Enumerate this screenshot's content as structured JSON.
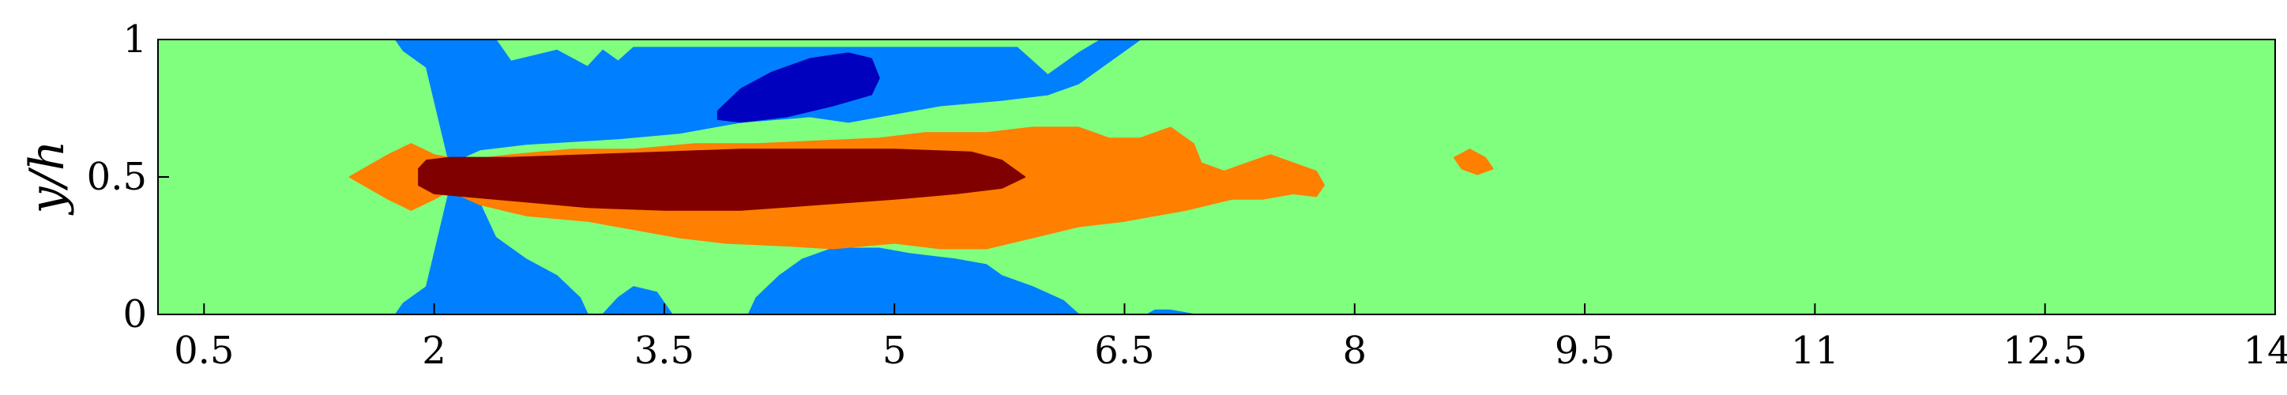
{
  "chart_data": {
    "type": "heatmap",
    "title": "",
    "xlabel": "",
    "ylabel": "y/h",
    "xlim": [
      0.2,
      14
    ],
    "ylim": [
      0,
      1
    ],
    "x_ticks": [
      0.5,
      2,
      3.5,
      5,
      6.5,
      8,
      9.5,
      11,
      12.5,
      14
    ],
    "x_tick_labels": [
      "0.5",
      "2",
      "3.5",
      "5",
      "6.5",
      "8",
      "9.5",
      "11",
      "12.5",
      "14"
    ],
    "y_ticks": [
      0,
      0.5,
      1
    ],
    "y_tick_labels": [
      "0",
      "0.5",
      "1"
    ],
    "grid": false,
    "colors": {
      "background": "#80ff7f",
      "level_low": "#0080ff",
      "level_lowest": "#0000bf",
      "level_high": "#ff7f00",
      "level_highest": "#800000"
    },
    "regions": [
      {
        "level": "low",
        "points": [
          [
            1.75,
            1
          ],
          [
            2.1,
            1
          ],
          [
            2.1,
            0.55
          ],
          [
            1.95,
            0.9
          ],
          [
            1.8,
            0.96
          ]
        ]
      },
      {
        "level": "low",
        "points": [
          [
            1.75,
            0
          ],
          [
            2.1,
            0
          ],
          [
            2.1,
            0.45
          ],
          [
            1.95,
            0.1
          ],
          [
            1.8,
            0.04
          ]
        ]
      },
      {
        "level": "low",
        "points": [
          [
            2.1,
            0.55
          ],
          [
            2.1,
            1
          ],
          [
            2.4,
            1
          ],
          [
            2.5,
            0.92
          ],
          [
            2.8,
            0.96
          ],
          [
            3.0,
            0.9
          ],
          [
            3.1,
            0.96
          ],
          [
            3.2,
            0.92
          ],
          [
            3.3,
            0.97
          ],
          [
            5.8,
            0.97
          ],
          [
            5.9,
            0.92
          ],
          [
            6.0,
            0.87
          ],
          [
            6.2,
            0.95
          ],
          [
            6.35,
            1
          ],
          [
            6.6,
            1
          ],
          [
            6.4,
            0.92
          ],
          [
            6.2,
            0.84
          ],
          [
            6.0,
            0.8
          ],
          [
            5.7,
            0.78
          ],
          [
            5.3,
            0.76
          ],
          [
            4.9,
            0.72
          ],
          [
            4.7,
            0.7
          ],
          [
            4.45,
            0.72
          ],
          [
            4.0,
            0.7
          ],
          [
            3.6,
            0.66
          ],
          [
            3.2,
            0.64
          ],
          [
            2.6,
            0.62
          ],
          [
            2.3,
            0.6
          ]
        ]
      },
      {
        "level": "low",
        "points": [
          [
            2.1,
            0.45
          ],
          [
            2.1,
            0
          ],
          [
            3.0,
            0
          ],
          [
            2.95,
            0.06
          ],
          [
            2.8,
            0.14
          ],
          [
            2.6,
            0.2
          ],
          [
            2.4,
            0.28
          ],
          [
            2.3,
            0.4
          ]
        ]
      },
      {
        "level": "low",
        "points": [
          [
            3.1,
            0
          ],
          [
            3.55,
            0
          ],
          [
            3.45,
            0.08
          ],
          [
            3.3,
            0.1
          ],
          [
            3.2,
            0.06
          ]
        ]
      },
      {
        "level": "low",
        "points": [
          [
            4.05,
            0
          ],
          [
            6.2,
            0
          ],
          [
            6.1,
            0.05
          ],
          [
            5.9,
            0.1
          ],
          [
            5.7,
            0.14
          ],
          [
            5.6,
            0.18
          ],
          [
            5.4,
            0.2
          ],
          [
            5.1,
            0.22
          ],
          [
            4.9,
            0.24
          ],
          [
            4.6,
            0.24
          ],
          [
            4.4,
            0.2
          ],
          [
            4.25,
            0.14
          ],
          [
            4.1,
            0.06
          ]
        ]
      },
      {
        "level": "low",
        "points": [
          [
            6.65,
            0
          ],
          [
            6.95,
            0
          ],
          [
            6.8,
            0.015
          ],
          [
            6.7,
            0.015
          ]
        ]
      },
      {
        "level": "lowest",
        "points": [
          [
            3.85,
            0.74
          ],
          [
            4.0,
            0.82
          ],
          [
            4.2,
            0.88
          ],
          [
            4.45,
            0.93
          ],
          [
            4.7,
            0.95
          ],
          [
            4.85,
            0.93
          ],
          [
            4.9,
            0.86
          ],
          [
            4.85,
            0.8
          ],
          [
            4.6,
            0.76
          ],
          [
            4.3,
            0.72
          ],
          [
            4.0,
            0.7
          ],
          [
            3.85,
            0.71
          ]
        ]
      },
      {
        "level": "high",
        "points": [
          [
            1.45,
            0.5
          ],
          [
            1.7,
            0.42
          ],
          [
            1.85,
            0.38
          ],
          [
            2.0,
            0.42
          ],
          [
            2.1,
            0.45
          ],
          [
            2.3,
            0.4
          ],
          [
            2.6,
            0.36
          ],
          [
            3.0,
            0.34
          ],
          [
            3.3,
            0.31
          ],
          [
            3.6,
            0.28
          ],
          [
            3.9,
            0.26
          ],
          [
            4.3,
            0.25
          ],
          [
            4.6,
            0.24
          ],
          [
            5.0,
            0.26
          ],
          [
            5.3,
            0.24
          ],
          [
            5.6,
            0.24
          ],
          [
            5.9,
            0.28
          ],
          [
            6.2,
            0.32
          ],
          [
            6.5,
            0.34
          ],
          [
            6.9,
            0.38
          ],
          [
            7.2,
            0.42
          ],
          [
            7.4,
            0.42
          ],
          [
            7.6,
            0.44
          ],
          [
            7.75,
            0.43
          ],
          [
            7.8,
            0.47
          ],
          [
            7.75,
            0.52
          ],
          [
            7.6,
            0.55
          ],
          [
            7.45,
            0.58
          ],
          [
            7.3,
            0.55
          ],
          [
            7.15,
            0.52
          ],
          [
            7.0,
            0.55
          ],
          [
            6.95,
            0.62
          ],
          [
            6.8,
            0.68
          ],
          [
            6.6,
            0.64
          ],
          [
            6.4,
            0.64
          ],
          [
            6.2,
            0.68
          ],
          [
            5.9,
            0.68
          ],
          [
            5.6,
            0.66
          ],
          [
            5.2,
            0.66
          ],
          [
            4.9,
            0.64
          ],
          [
            4.5,
            0.63
          ],
          [
            4.1,
            0.62
          ],
          [
            3.7,
            0.62
          ],
          [
            3.3,
            0.6
          ],
          [
            2.9,
            0.6
          ],
          [
            2.5,
            0.58
          ],
          [
            2.2,
            0.56
          ],
          [
            2.0,
            0.58
          ],
          [
            1.85,
            0.62
          ],
          [
            1.7,
            0.58
          ]
        ]
      },
      {
        "level": "high",
        "points": [
          [
            8.65,
            0.57
          ],
          [
            8.75,
            0.6
          ],
          [
            8.85,
            0.57
          ],
          [
            8.9,
            0.53
          ],
          [
            8.8,
            0.51
          ],
          [
            8.7,
            0.53
          ]
        ]
      },
      {
        "level": "highest",
        "points": [
          [
            1.9,
            0.53
          ],
          [
            1.95,
            0.56
          ],
          [
            2.1,
            0.57
          ],
          [
            2.5,
            0.57
          ],
          [
            3.0,
            0.58
          ],
          [
            3.5,
            0.59
          ],
          [
            4.0,
            0.6
          ],
          [
            4.5,
            0.6
          ],
          [
            5.0,
            0.6
          ],
          [
            5.5,
            0.59
          ],
          [
            5.7,
            0.56
          ],
          [
            5.85,
            0.5
          ],
          [
            5.7,
            0.46
          ],
          [
            5.4,
            0.44
          ],
          [
            5.0,
            0.42
          ],
          [
            4.5,
            0.4
          ],
          [
            4.0,
            0.38
          ],
          [
            3.5,
            0.38
          ],
          [
            3.0,
            0.39
          ],
          [
            2.6,
            0.41
          ],
          [
            2.2,
            0.43
          ],
          [
            2.0,
            0.44
          ],
          [
            1.9,
            0.47
          ]
        ]
      }
    ]
  }
}
